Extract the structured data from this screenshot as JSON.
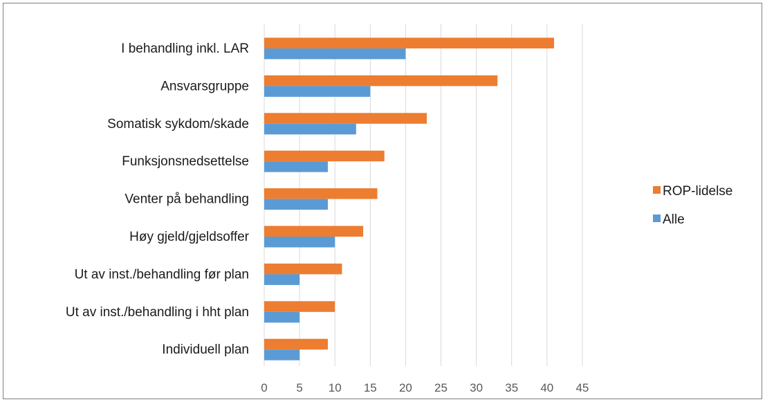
{
  "chart_data": {
    "type": "bar",
    "orientation": "horizontal",
    "categories": [
      "I behandling inkl. LAR",
      "Ansvarsgruppe",
      "Somatisk sykdom/skade",
      "Funksjonsnedsettelse",
      "Venter på behandling",
      "Høy gjeld/gjeldsoffer",
      "Ut av inst./behandling før plan",
      "Ut av inst./behandling i hht plan",
      "Individuell plan"
    ],
    "series": [
      {
        "name": "ROP-lidelse",
        "color": "#ED7D31",
        "values": [
          41,
          33,
          23,
          17,
          16,
          14,
          11,
          10,
          9
        ]
      },
      {
        "name": "Alle",
        "color": "#5B9BD5",
        "values": [
          20,
          15,
          13,
          9,
          9,
          10,
          5,
          5,
          5
        ]
      }
    ],
    "x_ticks": [
      "0",
      "5",
      "10",
      "15",
      "20",
      "25",
      "30",
      "35",
      "40",
      "45"
    ],
    "xlim": [
      0,
      45
    ],
    "grid": "vertical",
    "legend_position": "right"
  }
}
